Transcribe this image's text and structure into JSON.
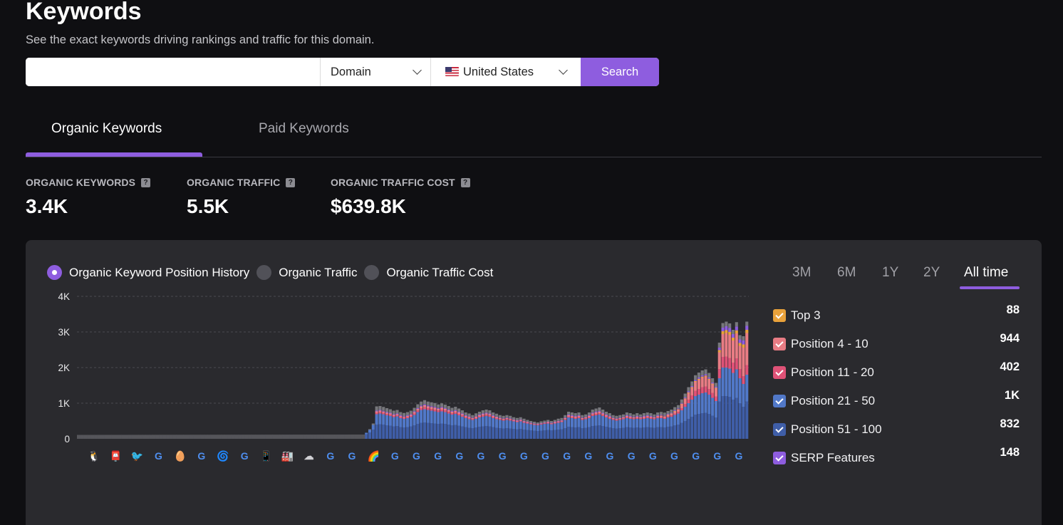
{
  "header": {
    "title": "Keywords",
    "subtitle": "See the exact keywords driving rankings and traffic for this domain."
  },
  "search": {
    "input_value": "",
    "type_value": "Domain",
    "country_value": "United States",
    "button_label": "Search"
  },
  "tabs": [
    {
      "label": "Organic Keywords",
      "active": true
    },
    {
      "label": "Paid Keywords",
      "active": false
    }
  ],
  "stats": [
    {
      "label": "ORGANIC KEYWORDS",
      "value": "3.4K"
    },
    {
      "label": "ORGANIC TRAFFIC",
      "value": "5.5K"
    },
    {
      "label": "ORGANIC TRAFFIC COST",
      "value": "$639.8K"
    }
  ],
  "chart_options": [
    {
      "label": "Organic Keyword Position History",
      "selected": true
    },
    {
      "label": "Organic Traffic",
      "selected": false
    },
    {
      "label": "Organic Traffic Cost",
      "selected": false
    }
  ],
  "time_ranges": [
    "3M",
    "6M",
    "1Y",
    "2Y",
    "All time"
  ],
  "active_range": "All time",
  "legend": [
    {
      "label": "Top 3",
      "value": "88",
      "color": "#e9a23b"
    },
    {
      "label": "Position 4 - 10",
      "value": "944",
      "color": "#e87c84"
    },
    {
      "label": "Position 11 - 20",
      "value": "402",
      "color": "#df5277"
    },
    {
      "label": "Position 21 - 50",
      "value": "1K",
      "color": "#5178c8"
    },
    {
      "label": "Position 51 - 100",
      "value": "832",
      "color": "#3f5ea8"
    },
    {
      "label": "SERP Features",
      "value": "148",
      "color": "#8e5ddf"
    }
  ],
  "chart_data": {
    "type": "bar",
    "stacked": true,
    "y_ticks": [
      "4K",
      "3K",
      "2K",
      "1K",
      "0"
    ],
    "ylim": [
      0,
      4000
    ],
    "grid": true,
    "legend_position": "right",
    "colors": {
      "flat": "#55555a",
      "bottom": "#3f5ea8",
      "mid": "#5178c8",
      "pink": "#df5277",
      "salmon": "#e87c84",
      "orange": "#e9a23b",
      "serp": "#8e5ddf",
      "cap": "#77777c"
    },
    "flat_segment": {
      "bar_count": 84,
      "start_value": 110,
      "end_value": 120
    },
    "series_order": [
      "bottom",
      "mid",
      "pink",
      "salmon",
      "orange",
      "serp",
      "cap"
    ],
    "stacks": [
      [
        130,
        40,
        0,
        0,
        0,
        0,
        0
      ],
      [
        180,
        70,
        0,
        0,
        0,
        0,
        20
      ],
      [
        260,
        130,
        0,
        0,
        0,
        0,
        40
      ],
      [
        400,
        290,
        40,
        40,
        0,
        20,
        120
      ],
      [
        410,
        300,
        40,
        40,
        0,
        20,
        110
      ],
      [
        400,
        290,
        40,
        35,
        0,
        20,
        110
      ],
      [
        380,
        280,
        35,
        35,
        0,
        20,
        110
      ],
      [
        370,
        270,
        35,
        35,
        0,
        20,
        100
      ],
      [
        350,
        260,
        30,
        30,
        0,
        20,
        100
      ],
      [
        360,
        270,
        30,
        30,
        0,
        20,
        100
      ],
      [
        330,
        250,
        30,
        30,
        0,
        20,
        90
      ],
      [
        320,
        240,
        30,
        25,
        0,
        20,
        90
      ],
      [
        330,
        250,
        30,
        30,
        0,
        20,
        90
      ],
      [
        350,
        260,
        30,
        30,
        0,
        20,
        100
      ],
      [
        380,
        290,
        40,
        40,
        0,
        20,
        100
      ],
      [
        420,
        330,
        45,
        45,
        0,
        20,
        110
      ],
      [
        450,
        360,
        50,
        50,
        0,
        25,
        110
      ],
      [
        460,
        370,
        55,
        55,
        0,
        25,
        120
      ],
      [
        450,
        360,
        50,
        50,
        0,
        25,
        110
      ],
      [
        440,
        350,
        50,
        50,
        0,
        25,
        110
      ],
      [
        430,
        340,
        50,
        50,
        0,
        25,
        110
      ],
      [
        420,
        330,
        45,
        45,
        0,
        25,
        100
      ],
      [
        430,
        340,
        50,
        50,
        0,
        25,
        100
      ],
      [
        420,
        330,
        45,
        45,
        0,
        20,
        100
      ],
      [
        400,
        310,
        45,
        45,
        0,
        20,
        100
      ],
      [
        380,
        300,
        40,
        40,
        0,
        20,
        90
      ],
      [
        390,
        310,
        40,
        40,
        0,
        20,
        100
      ],
      [
        370,
        290,
        40,
        40,
        0,
        20,
        90
      ],
      [
        350,
        270,
        35,
        35,
        0,
        20,
        90
      ],
      [
        330,
        250,
        30,
        30,
        0,
        20,
        80
      ],
      [
        310,
        240,
        30,
        30,
        0,
        20,
        80
      ],
      [
        300,
        230,
        25,
        25,
        0,
        15,
        70
      ],
      [
        320,
        240,
        30,
        30,
        0,
        15,
        80
      ],
      [
        340,
        260,
        30,
        30,
        0,
        20,
        80
      ],
      [
        350,
        270,
        35,
        35,
        0,
        20,
        90
      ],
      [
        360,
        280,
        35,
        35,
        0,
        20,
        90
      ],
      [
        350,
        270,
        35,
        35,
        0,
        20,
        90
      ],
      [
        330,
        250,
        30,
        30,
        0,
        20,
        80
      ],
      [
        310,
        240,
        30,
        30,
        0,
        15,
        80
      ],
      [
        300,
        230,
        25,
        25,
        0,
        15,
        70
      ],
      [
        290,
        220,
        25,
        25,
        0,
        15,
        70
      ],
      [
        300,
        230,
        25,
        25,
        0,
        15,
        70
      ],
      [
        290,
        220,
        25,
        25,
        0,
        15,
        70
      ],
      [
        280,
        210,
        20,
        20,
        0,
        15,
        60
      ],
      [
        270,
        200,
        20,
        20,
        0,
        15,
        60
      ],
      [
        280,
        210,
        20,
        20,
        0,
        15,
        60
      ],
      [
        260,
        190,
        20,
        20,
        0,
        15,
        60
      ],
      [
        250,
        180,
        20,
        20,
        0,
        10,
        50
      ],
      [
        240,
        170,
        15,
        15,
        0,
        10,
        50
      ],
      [
        230,
        160,
        15,
        15,
        0,
        10,
        50
      ],
      [
        220,
        160,
        15,
        15,
        0,
        10,
        40
      ],
      [
        230,
        170,
        15,
        15,
        0,
        10,
        50
      ],
      [
        240,
        180,
        15,
        15,
        0,
        10,
        50
      ],
      [
        250,
        180,
        20,
        20,
        0,
        10,
        50
      ],
      [
        240,
        170,
        15,
        15,
        0,
        10,
        50
      ],
      [
        250,
        180,
        20,
        20,
        0,
        10,
        50
      ],
      [
        260,
        190,
        20,
        20,
        0,
        15,
        60
      ],
      [
        270,
        200,
        20,
        20,
        0,
        15,
        60
      ],
      [
        300,
        230,
        25,
        25,
        0,
        15,
        70
      ],
      [
        340,
        260,
        30,
        30,
        0,
        20,
        80
      ],
      [
        330,
        250,
        30,
        30,
        0,
        20,
        80
      ],
      [
        320,
        240,
        30,
        30,
        0,
        20,
        80
      ],
      [
        330,
        250,
        30,
        30,
        0,
        20,
        80
      ],
      [
        300,
        230,
        25,
        25,
        0,
        15,
        70
      ],
      [
        310,
        240,
        25,
        25,
        0,
        15,
        70
      ],
      [
        330,
        250,
        30,
        30,
        0,
        20,
        80
      ],
      [
        360,
        280,
        35,
        35,
        0,
        20,
        90
      ],
      [
        370,
        290,
        40,
        40,
        0,
        20,
        90
      ],
      [
        380,
        300,
        40,
        40,
        0,
        20,
        100
      ],
      [
        360,
        280,
        35,
        35,
        0,
        20,
        90
      ],
      [
        340,
        260,
        30,
        30,
        0,
        20,
        80
      ],
      [
        320,
        240,
        30,
        30,
        0,
        20,
        80
      ],
      [
        300,
        230,
        25,
        25,
        0,
        15,
        70
      ],
      [
        290,
        220,
        25,
        25,
        0,
        15,
        70
      ],
      [
        300,
        230,
        25,
        25,
        0,
        15,
        70
      ],
      [
        310,
        240,
        25,
        25,
        0,
        15,
        70
      ],
      [
        330,
        250,
        30,
        30,
        0,
        20,
        80
      ],
      [
        320,
        240,
        30,
        30,
        0,
        20,
        80
      ],
      [
        310,
        240,
        25,
        25,
        0,
        15,
        70
      ],
      [
        320,
        240,
        30,
        30,
        0,
        20,
        80
      ],
      [
        310,
        240,
        25,
        25,
        0,
        15,
        70
      ],
      [
        320,
        240,
        30,
        30,
        0,
        20,
        80
      ],
      [
        330,
        250,
        30,
        30,
        0,
        20,
        80
      ],
      [
        320,
        240,
        30,
        30,
        0,
        20,
        80
      ],
      [
        310,
        240,
        25,
        25,
        0,
        15,
        70
      ],
      [
        330,
        250,
        30,
        30,
        0,
        20,
        80
      ],
      [
        330,
        250,
        30,
        35,
        10,
        20,
        80
      ],
      [
        320,
        240,
        30,
        35,
        10,
        20,
        80
      ],
      [
        340,
        260,
        30,
        40,
        10,
        20,
        80
      ],
      [
        350,
        270,
        35,
        45,
        10,
        20,
        90
      ],
      [
        380,
        290,
        40,
        60,
        10,
        20,
        90
      ],
      [
        400,
        310,
        45,
        70,
        10,
        20,
        90
      ],
      [
        450,
        350,
        60,
        110,
        15,
        20,
        100
      ],
      [
        500,
        400,
        80,
        140,
        15,
        25,
        110
      ],
      [
        560,
        440,
        100,
        180,
        20,
        30,
        120
      ],
      [
        620,
        480,
        120,
        210,
        20,
        30,
        130
      ],
      [
        680,
        520,
        150,
        250,
        20,
        35,
        130
      ],
      [
        700,
        540,
        160,
        260,
        25,
        35,
        140
      ],
      [
        720,
        560,
        170,
        270,
        25,
        35,
        140
      ],
      [
        730,
        570,
        170,
        280,
        25,
        35,
        140
      ],
      [
        700,
        540,
        160,
        260,
        25,
        35,
        130
      ],
      [
        650,
        500,
        140,
        240,
        20,
        30,
        120
      ],
      [
        600,
        460,
        130,
        220,
        20,
        30,
        110
      ],
      [
        1050,
        650,
        260,
        470,
        60,
        70,
        140
      ],
      [
        1200,
        800,
        300,
        640,
        80,
        100,
        130
      ],
      [
        1200,
        800,
        310,
        660,
        80,
        110,
        130
      ],
      [
        1180,
        790,
        300,
        650,
        80,
        110,
        130
      ],
      [
        1100,
        750,
        290,
        620,
        80,
        100,
        120
      ],
      [
        1150,
        800,
        310,
        700,
        85,
        110,
        120
      ],
      [
        1000,
        700,
        260,
        650,
        80,
        100,
        120
      ],
      [
        900,
        640,
        220,
        800,
        90,
        110,
        120
      ],
      [
        1050,
        750,
        270,
        900,
        90,
        110,
        120
      ]
    ],
    "icon_markers": [
      "🐧",
      "📮",
      "🐦",
      "G",
      "🥚",
      "G",
      "🌀",
      "G",
      "📱",
      "🏭",
      "☁",
      "G",
      "G",
      "🌈",
      "G",
      "G",
      "G",
      "G",
      "G",
      "G",
      "G",
      "G",
      "G",
      "G",
      "G",
      "G",
      "G",
      "G",
      "G",
      "G",
      "G"
    ]
  }
}
